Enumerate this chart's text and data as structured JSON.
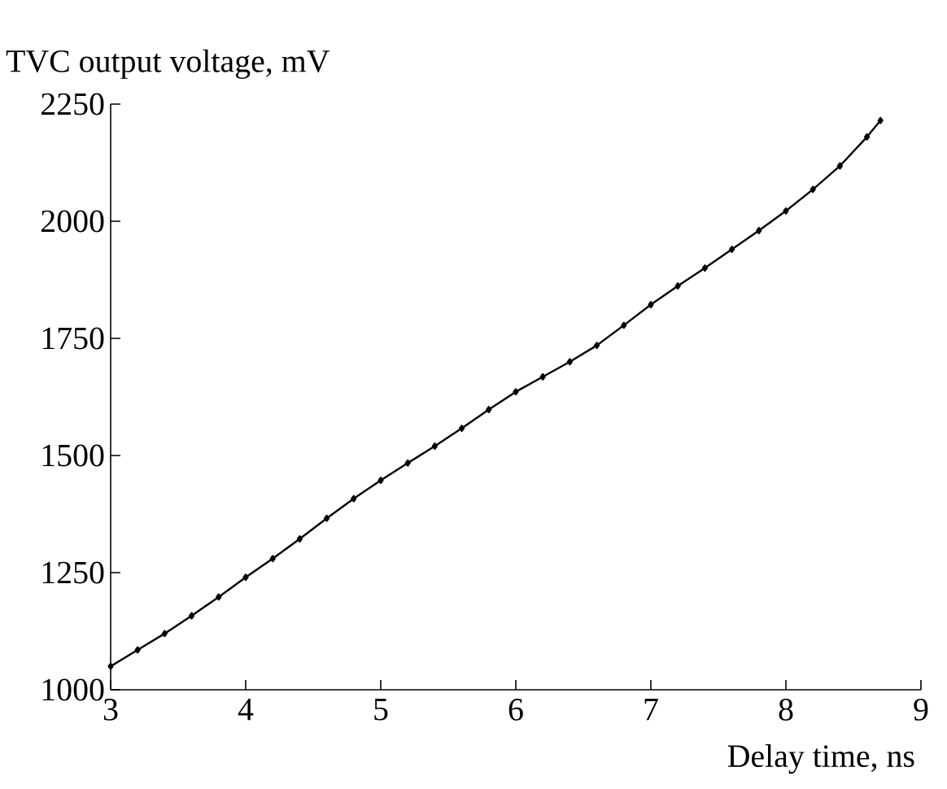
{
  "chart_data": {
    "type": "line",
    "xlabel": "Delay time, ns",
    "ylabel": "TVC output voltage, mV",
    "xlim": [
      3,
      9
    ],
    "ylim": [
      1000,
      2250
    ],
    "xticks": [
      3,
      4,
      5,
      6,
      7,
      8,
      9
    ],
    "yticks": [
      1000,
      1250,
      1500,
      1750,
      2000,
      2250
    ],
    "marker": "diamond",
    "line_style": "solid",
    "series": [
      {
        "color": "#000000",
        "x": [
          3.0,
          3.2,
          3.4,
          3.6,
          3.8,
          4.0,
          4.2,
          4.4,
          4.6,
          4.8,
          5.0,
          5.2,
          5.4,
          5.6,
          5.8,
          6.0,
          6.2,
          6.4,
          6.6,
          6.8,
          7.0,
          7.2,
          7.4,
          7.6,
          7.8,
          8.0,
          8.2,
          8.4,
          8.6,
          8.7
        ],
        "values": [
          1050,
          1085,
          1120,
          1158,
          1198,
          1240,
          1280,
          1322,
          1366,
          1408,
          1447,
          1484,
          1520,
          1558,
          1598,
          1636,
          1668,
          1700,
          1735,
          1778,
          1822,
          1862,
          1900,
          1940,
          1980,
          2022,
          2068,
          2118,
          2180,
          2215
        ]
      }
    ]
  }
}
